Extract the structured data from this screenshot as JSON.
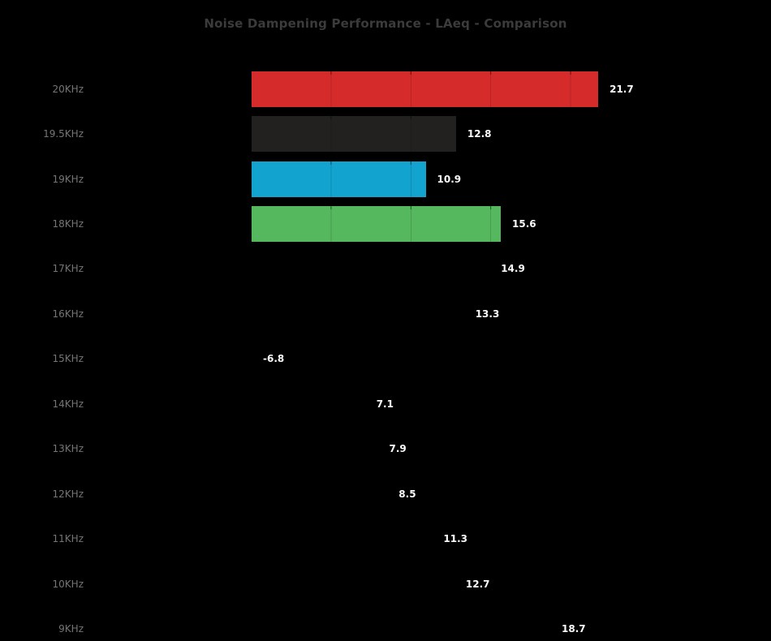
{
  "chart_data": {
    "type": "bar",
    "orientation": "horizontal",
    "title": "Noise Dampening Performance - LAeq - Comparison",
    "categories": [
      "20KHz",
      "19.5KHz",
      "19KHz",
      "18KHz",
      "17KHz",
      "16KHz",
      "15KHz",
      "14KHz",
      "13KHz",
      "12KHz",
      "11KHz",
      "10KHz",
      "9KHz"
    ],
    "values": [
      21.7,
      12.8,
      10.9,
      15.6,
      14.9,
      13.3,
      -6.8,
      7.1,
      7.9,
      8.5,
      11.3,
      12.7,
      18.7
    ],
    "bar_colors": [
      "#d62b2b",
      "#232120",
      "#12a3cf",
      "#55b75e",
      "#000000",
      "#000000",
      "#000000",
      "#000000",
      "#000000",
      "#000000",
      "#000000",
      "#000000",
      "#000000"
    ],
    "xlabel": "",
    "ylabel": "",
    "xlim": [
      -10,
      32.5
    ],
    "gridline_interval": 5,
    "grid": "vertical gridlines every 5 units, black low-opacity, drawn over bars",
    "legend": "none",
    "value_labels": "outside bar end, zero-clamped for negative values",
    "colors": {
      "background": "#000000",
      "title_text": "#3b3b3c",
      "category_text": "#757575",
      "value_text": "#fafafa"
    }
  }
}
